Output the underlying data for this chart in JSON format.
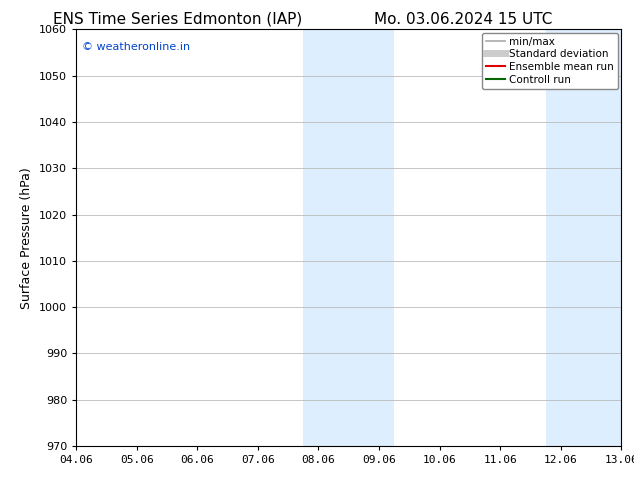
{
  "title_left": "ENS Time Series Edmonton (IAP)",
  "title_right": "Mo. 03.06.2024 15 UTC",
  "ylabel": "Surface Pressure (hPa)",
  "ylim": [
    970,
    1060
  ],
  "yticks": [
    970,
    980,
    990,
    1000,
    1010,
    1020,
    1030,
    1040,
    1050,
    1060
  ],
  "xtick_labels": [
    "04.06",
    "05.06",
    "06.06",
    "07.06",
    "08.06",
    "09.06",
    "10.06",
    "11.06",
    "12.06",
    "13.06"
  ],
  "n_xticks": 10,
  "xlim": [
    0,
    9
  ],
  "shaded_regions": [
    {
      "x_start": 3.75,
      "x_end": 5.25,
      "color": "#ddeeff"
    },
    {
      "x_start": 7.75,
      "x_end": 9.0,
      "color": "#ddeeff"
    }
  ],
  "grid_color": "#bbbbbb",
  "bg_color": "#ffffff",
  "watermark_text": "© weatheronline.in",
  "watermark_color": "#0044cc",
  "legend_items": [
    {
      "label": "min/max",
      "color": "#aaaaaa",
      "lw": 1.2,
      "ls": "-"
    },
    {
      "label": "Standard deviation",
      "color": "#cccccc",
      "lw": 5,
      "ls": "-"
    },
    {
      "label": "Ensemble mean run",
      "color": "#dd0000",
      "lw": 1.5,
      "ls": "-"
    },
    {
      "label": "Controll run",
      "color": "#006600",
      "lw": 1.5,
      "ls": "-"
    }
  ],
  "title_fontsize": 11,
  "axis_label_fontsize": 9,
  "tick_fontsize": 8,
  "legend_fontsize": 7.5,
  "watermark_fontsize": 8
}
